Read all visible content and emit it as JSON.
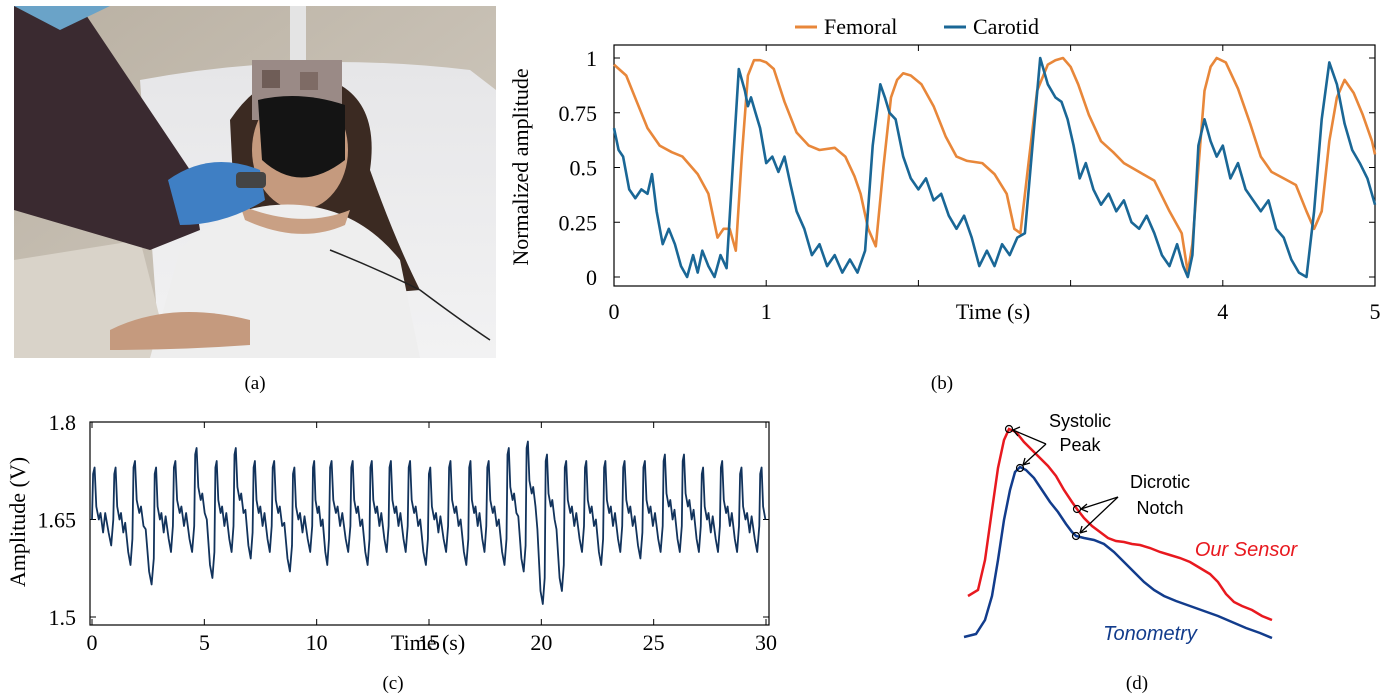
{
  "captions": {
    "a": "(a)",
    "b": "(b)",
    "c": "(c)",
    "d": "(d)"
  },
  "photo": {
    "description_label": ""
  },
  "chart_data": [
    {
      "id": "b",
      "type": "line",
      "title": "",
      "xlabel": "Time (s)",
      "ylabel": "Normalized amplitude",
      "xlim": [
        0,
        5
      ],
      "ylim": [
        0,
        1
      ],
      "xticks": [
        "0",
        "1",
        "4",
        "5"
      ],
      "xtick_values": [
        0,
        1,
        4,
        5
      ],
      "yticks": [
        "0",
        "0.25",
        "0.5",
        "0.75",
        "1"
      ],
      "ytick_values": [
        0,
        0.25,
        0.5,
        0.75,
        1
      ],
      "grid": false,
      "legend": "top",
      "series": [
        {
          "name": "Femoral",
          "color": "#E8873A",
          "x": [
            0,
            0.08,
            0.15,
            0.22,
            0.3,
            0.38,
            0.45,
            0.55,
            0.62,
            0.68,
            0.72,
            0.76,
            0.8,
            0.84,
            0.88,
            0.92,
            0.96,
            1.0,
            1.05,
            1.12,
            1.2,
            1.28,
            1.35,
            1.45,
            1.52,
            1.58,
            1.62,
            1.67,
            1.72,
            1.77,
            1.82,
            1.86,
            1.9,
            1.95,
            2.02,
            2.1,
            2.18,
            2.25,
            2.32,
            2.42,
            2.5,
            2.58,
            2.63,
            2.67,
            2.72,
            2.78,
            2.85,
            2.9,
            2.95,
            3.0,
            3.05,
            3.12,
            3.2,
            3.28,
            3.35,
            3.45,
            3.55,
            3.65,
            3.73,
            3.77,
            3.8,
            3.84,
            3.88,
            3.92,
            3.96,
            4.02,
            4.1,
            4.18,
            4.25,
            4.32,
            4.4,
            4.48,
            4.55,
            4.6,
            4.65,
            4.7,
            4.75,
            4.8,
            4.86,
            4.92,
            4.98,
            5.0
          ],
          "y": [
            0.97,
            0.92,
            0.8,
            0.68,
            0.6,
            0.57,
            0.55,
            0.47,
            0.38,
            0.18,
            0.22,
            0.22,
            0.12,
            0.55,
            0.92,
            0.99,
            0.99,
            0.98,
            0.95,
            0.8,
            0.66,
            0.6,
            0.58,
            0.59,
            0.55,
            0.46,
            0.38,
            0.22,
            0.14,
            0.5,
            0.82,
            0.9,
            0.93,
            0.92,
            0.88,
            0.78,
            0.64,
            0.55,
            0.53,
            0.52,
            0.47,
            0.38,
            0.22,
            0.2,
            0.5,
            0.85,
            0.97,
            0.99,
            1.0,
            0.96,
            0.88,
            0.74,
            0.62,
            0.57,
            0.52,
            0.48,
            0.44,
            0.3,
            0.2,
            0.02,
            0.15,
            0.5,
            0.85,
            0.96,
            1.0,
            0.98,
            0.86,
            0.7,
            0.55,
            0.48,
            0.45,
            0.42,
            0.3,
            0.22,
            0.3,
            0.62,
            0.82,
            0.9,
            0.84,
            0.74,
            0.62,
            0.56
          ]
        },
        {
          "name": "Carotid",
          "color": "#1A6796",
          "x": [
            0,
            0.03,
            0.06,
            0.1,
            0.14,
            0.18,
            0.22,
            0.25,
            0.28,
            0.32,
            0.36,
            0.4,
            0.44,
            0.48,
            0.52,
            0.55,
            0.58,
            0.62,
            0.66,
            0.7,
            0.74,
            0.78,
            0.82,
            0.86,
            0.88,
            0.9,
            0.93,
            0.96,
            1.0,
            1.04,
            1.08,
            1.12,
            1.16,
            1.2,
            1.25,
            1.3,
            1.35,
            1.4,
            1.45,
            1.5,
            1.55,
            1.6,
            1.65,
            1.7,
            1.75,
            1.78,
            1.81,
            1.85,
            1.9,
            1.95,
            2.0,
            2.05,
            2.1,
            2.15,
            2.2,
            2.25,
            2.3,
            2.35,
            2.4,
            2.45,
            2.5,
            2.55,
            2.6,
            2.65,
            2.7,
            2.75,
            2.8,
            2.85,
            2.9,
            2.94,
            2.98,
            3.02,
            3.06,
            3.1,
            3.15,
            3.2,
            3.25,
            3.3,
            3.35,
            3.4,
            3.45,
            3.5,
            3.55,
            3.6,
            3.65,
            3.7,
            3.74,
            3.77,
            3.8,
            3.84,
            3.88,
            3.92,
            3.96,
            4.0,
            4.05,
            4.1,
            4.15,
            4.2,
            4.25,
            4.3,
            4.35,
            4.4,
            4.45,
            4.5,
            4.55,
            4.6,
            4.65,
            4.7,
            4.75,
            4.8,
            4.85,
            4.9,
            4.95,
            5.0
          ],
          "y": [
            0.68,
            0.58,
            0.55,
            0.4,
            0.36,
            0.4,
            0.38,
            0.47,
            0.3,
            0.15,
            0.22,
            0.15,
            0.05,
            0.0,
            0.1,
            0.02,
            0.12,
            0.05,
            0.0,
            0.1,
            0.04,
            0.5,
            0.95,
            0.85,
            0.78,
            0.82,
            0.75,
            0.68,
            0.52,
            0.55,
            0.48,
            0.55,
            0.42,
            0.3,
            0.22,
            0.1,
            0.15,
            0.05,
            0.1,
            0.02,
            0.08,
            0.02,
            0.12,
            0.6,
            0.88,
            0.82,
            0.75,
            0.72,
            0.55,
            0.45,
            0.4,
            0.45,
            0.35,
            0.38,
            0.28,
            0.22,
            0.28,
            0.18,
            0.05,
            0.12,
            0.05,
            0.15,
            0.1,
            0.18,
            0.2,
            0.6,
            1.0,
            0.88,
            0.82,
            0.8,
            0.72,
            0.6,
            0.45,
            0.52,
            0.4,
            0.33,
            0.38,
            0.3,
            0.35,
            0.25,
            0.22,
            0.28,
            0.2,
            0.1,
            0.05,
            0.15,
            0.05,
            0.0,
            0.1,
            0.6,
            0.72,
            0.62,
            0.55,
            0.6,
            0.45,
            0.52,
            0.4,
            0.35,
            0.3,
            0.35,
            0.22,
            0.18,
            0.08,
            0.02,
            0.0,
            0.3,
            0.72,
            0.98,
            0.88,
            0.7,
            0.58,
            0.52,
            0.45,
            0.33
          ]
        }
      ]
    },
    {
      "id": "c",
      "type": "line",
      "title": "",
      "xlabel": "Time (s)",
      "ylabel": "Amplitude (V)",
      "xlim": [
        0,
        30
      ],
      "ylim": [
        1.5,
        1.8
      ],
      "xticks": [
        "0",
        "5",
        "10",
        "15",
        "20",
        "25",
        "30"
      ],
      "xtick_values": [
        0,
        5,
        10,
        15,
        20,
        25,
        30
      ],
      "yticks": [
        "1.5",
        "1.65",
        "1.8"
      ],
      "ytick_values": [
        1.5,
        1.65,
        1.8
      ],
      "grid": false,
      "series": [
        {
          "name": "",
          "color": "#12335C",
          "beat_times": [
            0.0,
            0.95,
            1.8,
            2.75,
            3.6,
            4.55,
            5.45,
            6.3,
            7.15,
            8.0,
            8.9,
            9.8,
            10.55,
            11.5,
            12.35,
            13.2,
            14.05,
            14.95,
            15.85,
            16.75,
            17.55,
            18.45,
            19.3,
            20.15,
            21.0,
            21.9,
            22.75,
            23.6,
            24.5,
            25.4,
            26.25,
            27.1,
            27.95,
            28.8,
            29.7
          ],
          "peaks": [
            1.73,
            1.73,
            1.74,
            1.73,
            1.74,
            1.76,
            1.74,
            1.76,
            1.74,
            1.74,
            1.73,
            1.74,
            1.74,
            1.74,
            1.74,
            1.74,
            1.74,
            1.73,
            1.74,
            1.74,
            1.74,
            1.76,
            1.77,
            1.75,
            1.74,
            1.74,
            1.74,
            1.74,
            1.74,
            1.75,
            1.75,
            1.73,
            1.74,
            1.73,
            1.73
          ],
          "troughs": [
            1.61,
            1.58,
            1.55,
            1.6,
            1.6,
            1.56,
            1.6,
            1.59,
            1.6,
            1.57,
            1.6,
            1.58,
            1.6,
            1.58,
            1.6,
            1.6,
            1.58,
            1.6,
            1.58,
            1.6,
            1.58,
            1.57,
            1.52,
            1.54,
            1.6,
            1.58,
            1.6,
            1.59,
            1.6,
            1.6,
            1.6,
            1.6,
            1.6,
            1.6,
            1.61
          ]
        }
      ]
    },
    {
      "id": "d",
      "type": "line",
      "title": "",
      "annotations": {
        "systolic": "Systolic\nPeak",
        "systolic_line1": "Systolic",
        "systolic_line2": "Peak",
        "dicrotic_line1": "Dicrotic",
        "dicrotic_line2": "Notch",
        "our_sensor": "Our Sensor",
        "tonometry": "Tonometry"
      },
      "series": [
        {
          "name": "Our Sensor",
          "color": "#E8191F"
        },
        {
          "name": "Tonometry",
          "color": "#123C8C"
        }
      ]
    }
  ]
}
